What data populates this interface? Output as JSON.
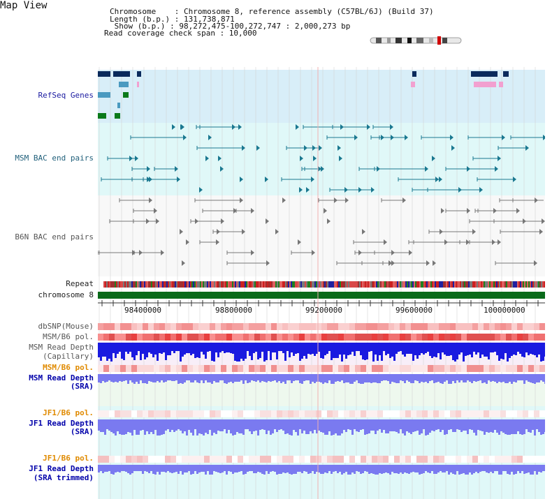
{
  "page": {
    "title": "Map View"
  },
  "info": {
    "chromosome_line": "Chromosome    : Chromosome 8, reference assembly (C57BL/6J) (Build 37)",
    "length_line": "Length (b.p.) : 131,738,871",
    "show_line": " Show (b.p.) : 98,272,475-100,272,747 : 2,000,273 bp",
    "coverage_line": "Read coverage check span : 10,000"
  },
  "tracks": [
    {
      "key": "refseq",
      "label": "RefSeq Genes",
      "style": "blue"
    },
    {
      "key": "msm_bac",
      "label": "MSM BAC end pairs",
      "style": "teal"
    },
    {
      "key": "b6n_bac",
      "label": "B6N BAC end pairs",
      "style": "gray"
    },
    {
      "key": "repeat",
      "label": "Repeat",
      "style": "dark"
    },
    {
      "key": "chrom",
      "label": "chromosome 8",
      "style": "dark"
    },
    {
      "key": "dbsnp",
      "label": "dbSNP(Mouse)",
      "style": "gray"
    },
    {
      "key": "msm_b6_pol",
      "label": "MSM/B6 pol.",
      "style": "gray"
    },
    {
      "key": "msm_depth_cap_1",
      "label": "MSM Read Depth",
      "style": "gray"
    },
    {
      "key": "msm_depth_cap_2",
      "label": "(Capillary)",
      "style": "gray"
    },
    {
      "key": "msm_b6_pol_2",
      "label": "MSM/B6 pol.",
      "style": "orange"
    },
    {
      "key": "msm_depth_sra_1",
      "label": "MSM Read Depth",
      "style": "navy"
    },
    {
      "key": "msm_depth_sra_2",
      "label": "(SRA)",
      "style": "navy"
    },
    {
      "key": "jf1_b6_pol",
      "label": "JF1/B6 pol.",
      "style": "orange"
    },
    {
      "key": "jf1_depth_sra_1",
      "label": "JF1 Read Depth",
      "style": "navy"
    },
    {
      "key": "jf1_depth_sra_2",
      "label": "(SRA)",
      "style": "navy"
    },
    {
      "key": "jf1_b6_pol_2",
      "label": "JF1/B6 pol.",
      "style": "orange"
    },
    {
      "key": "jf1_depth_trim_1",
      "label": "JF1 Read Depth",
      "style": "navy"
    },
    {
      "key": "jf1_depth_trim_2",
      "label": "(SRA trimmed)",
      "style": "navy"
    }
  ],
  "axis": {
    "ticks": [
      "98400000",
      "98800000",
      "99200000",
      "99600000",
      "100000000"
    ]
  },
  "colors": {
    "refseq_bg": "#d8eef8",
    "msm_bg": "#e0f8f8",
    "b6n_bg": "#f8f8f8",
    "msm_cov_bg": "#eef8ee",
    "jf1_bg": "#e0f8f8",
    "gene_dark": "#0a2a5c",
    "gene_mid": "#4a9ac0",
    "gene_green": "#0a7a1a",
    "gene_pink": "#f2a0d0",
    "chrom_green": "#0a6a1a",
    "depth_blue": "#1a1ae0",
    "depth_light": "#7a7af0"
  }
}
